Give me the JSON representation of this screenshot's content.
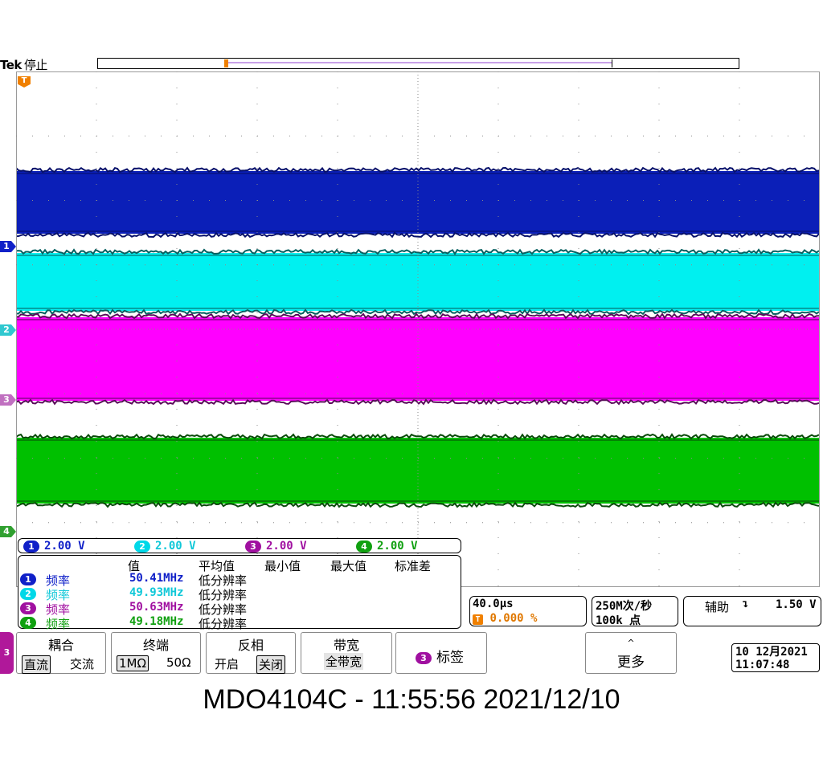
{
  "header": {
    "brand": "Tek",
    "status": "停止"
  },
  "channels": [
    {
      "id": "1",
      "color": "#0b1fb8",
      "edge": "#06106a",
      "scale": "2.00 V"
    },
    {
      "id": "2",
      "color": "#00f0f0",
      "edge": "#066060",
      "scale": "2.00 V"
    },
    {
      "id": "3",
      "color": "#ff00ff",
      "edge": "#5a0a5a",
      "scale": "2.00 V"
    },
    {
      "id": "4",
      "color": "#00c000",
      "edge": "#0a4a0a",
      "scale": "2.00 V"
    }
  ],
  "trigger_marker": "T",
  "measurements": {
    "headers": {
      "value": "值",
      "mean": "平均值",
      "min": "最小值",
      "max": "最大值",
      "std": "标准差"
    },
    "rows": [
      {
        "ch": "1",
        "label": "频率",
        "value": "50.41MHz",
        "note": "低分辨率"
      },
      {
        "ch": "2",
        "label": "频率",
        "value": "49.93MHz",
        "note": "低分辨率"
      },
      {
        "ch": "3",
        "label": "频率",
        "value": "50.63MHz",
        "note": "低分辨率"
      },
      {
        "ch": "4",
        "label": "频率",
        "value": "49.18MHz",
        "note": "低分辨率"
      }
    ]
  },
  "timebase": {
    "time_per_div": "40.0µs",
    "trigger_pos_icon": "T",
    "trigger_pos": "0.000 %",
    "sample_rate": "250M次/秒",
    "record_length": "100k 点"
  },
  "trigger": {
    "source": "辅助",
    "slope_icon": "falling-edge-icon",
    "slope_glyph": "↴",
    "level": "1.50 V"
  },
  "menu": {
    "channel_tab": "3",
    "coupling": {
      "title": "耦合",
      "opt1": "直流",
      "opt2": "交流"
    },
    "termination": {
      "title": "终端",
      "opt1": "1MΩ",
      "opt2": "50Ω"
    },
    "invert": {
      "title": "反相",
      "opt1": "开启",
      "opt2": "关闭"
    },
    "bandwidth": {
      "title": "带宽",
      "value": "全带宽"
    },
    "label": {
      "badge": "3",
      "title": "标签"
    },
    "more": {
      "arrow": "^",
      "title": "更多"
    }
  },
  "datetime": {
    "date": "10 12月2021",
    "time": "11:07:48"
  },
  "caption": "MDO4104C - 11:55:56   2021/12/10"
}
